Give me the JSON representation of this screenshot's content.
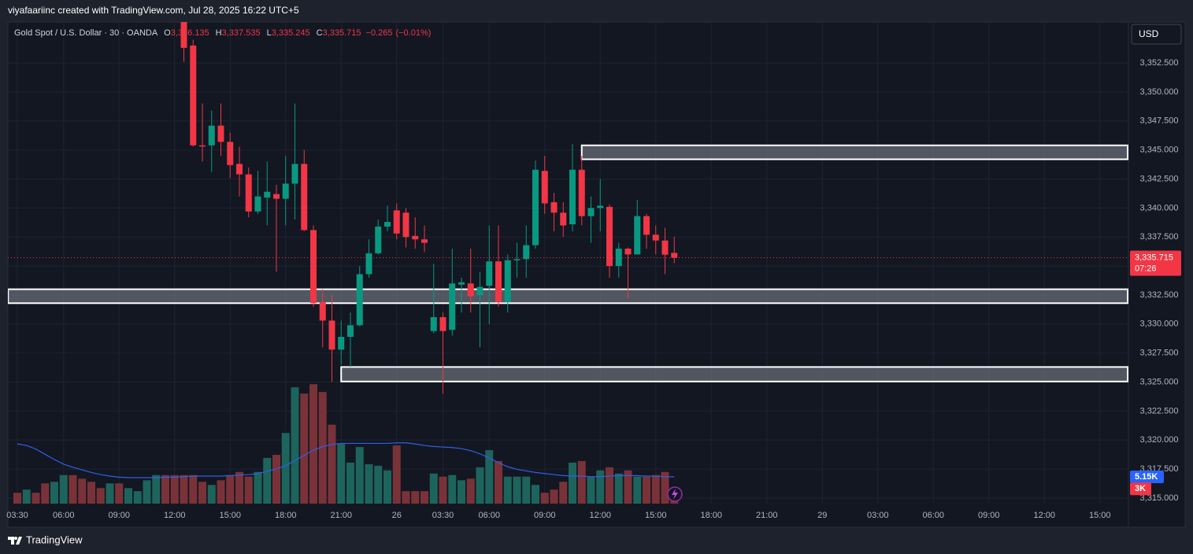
{
  "attribution": "viyafaariinc created with TradingView.com, Jul 28, 2025 16:22 UTC+5",
  "footer": "TradingView",
  "chart_data": {
    "type": "candlestick",
    "header": {
      "symbol": "Gold Spot / U.S. Dollar · 30 · OANDA",
      "ohlc_letters": [
        "O",
        "H",
        "L",
        "C"
      ],
      "ohlc": [
        {
          "value": 3336.135,
          "label": "3,336.135"
        },
        {
          "value": 3337.535,
          "label": "3,337.535"
        },
        {
          "value": 3335.245,
          "label": "3,335.245"
        },
        {
          "value": 3335.715,
          "label": "3,335.715"
        }
      ],
      "change": {
        "value": -0.265,
        "label": "−0.265"
      },
      "change_pct": {
        "value": -0.01,
        "label": "(−0.01%)"
      }
    },
    "currency": "USD",
    "last_price": {
      "value": 3335.715,
      "label": "3,335.715"
    },
    "countdown": "07:26",
    "up_color": "#089981",
    "down_color": "#f23645",
    "volume_up_color": "#1d645c",
    "volume_down_color": "#7a3239",
    "volume_ma_color": "#2f5fe8",
    "grid": true,
    "xlim": [
      0,
      121
    ],
    "ylim": [
      3314.5,
      3356
    ],
    "y2lim": [
      0,
      25
    ],
    "yticks": [
      {
        "value": 3352.5,
        "label": "3,352.500"
      },
      {
        "value": 3350,
        "label": "3,350.000"
      },
      {
        "value": 3347.5,
        "label": "3,347.500"
      },
      {
        "value": 3345,
        "label": "3,345.000"
      },
      {
        "value": 3342.5,
        "label": "3,342.500"
      },
      {
        "value": 3340,
        "label": "3,340.000"
      },
      {
        "value": 3337.5,
        "label": "3,337.500"
      },
      {
        "value": 3335,
        "label": "3,335.000"
      },
      {
        "value": 3332.5,
        "label": "3,332.500"
      },
      {
        "value": 3330,
        "label": "3,330.000"
      },
      {
        "value": 3327.5,
        "label": "3,327.500"
      },
      {
        "value": 3325,
        "label": "3,325.000"
      },
      {
        "value": 3322.5,
        "label": "3,322.500"
      },
      {
        "value": 3320,
        "label": "3,320.000"
      },
      {
        "value": 3317.5,
        "label": "3,317.500"
      },
      {
        "value": 3315,
        "label": "3,315.000"
      }
    ],
    "xticks": [
      {
        "value": 1,
        "label": "03:30"
      },
      {
        "value": 6,
        "label": "06:00"
      },
      {
        "value": 12,
        "label": "09:00"
      },
      {
        "value": 18,
        "label": "12:00"
      },
      {
        "value": 24,
        "label": "15:00"
      },
      {
        "value": 30,
        "label": "18:00"
      },
      {
        "value": 36,
        "label": "21:00"
      },
      {
        "value": 42,
        "label": "26"
      },
      {
        "value": 47,
        "label": "03:30"
      },
      {
        "value": 52,
        "label": "06:00"
      },
      {
        "value": 58,
        "label": "09:00"
      },
      {
        "value": 64,
        "label": "12:00"
      },
      {
        "value": 70,
        "label": "15:00"
      },
      {
        "value": 76,
        "label": "18:00"
      },
      {
        "value": 82,
        "label": "21:00"
      },
      {
        "value": 88,
        "label": "29"
      },
      {
        "value": 94,
        "label": "03:00"
      },
      {
        "value": 100,
        "label": "06:00"
      },
      {
        "value": 106,
        "label": "09:00"
      },
      {
        "value": 112,
        "label": "12:00"
      },
      {
        "value": 118,
        "label": "15:00"
      }
    ],
    "x": [
      1,
      2,
      3,
      4,
      5,
      6,
      7,
      8,
      9,
      10,
      11,
      12,
      13,
      14,
      15,
      16,
      17,
      18,
      19,
      20,
      21,
      22,
      23,
      24,
      25,
      26,
      27,
      28,
      29,
      30,
      31,
      32,
      33,
      34,
      35,
      36,
      37,
      38,
      39,
      40,
      41,
      42,
      43,
      44,
      45,
      46,
      47,
      48,
      49,
      50,
      51,
      52,
      53,
      54,
      55,
      56,
      57,
      58,
      59,
      60,
      61,
      62,
      63,
      64,
      65,
      66,
      67,
      68,
      69,
      70,
      71,
      72
    ],
    "open": [
      null,
      null,
      null,
      null,
      null,
      null,
      null,
      null,
      null,
      null,
      null,
      null,
      null,
      null,
      null,
      null,
      null,
      null,
      3356.5,
      3354,
      3345.4,
      3345.4,
      3347.1,
      3345.7,
      3343.8,
      3342.9,
      3339.7,
      3340.9,
      3341.2,
      3340.8,
      3342.1,
      3343.8,
      3338.1,
      3331.9,
      3330.3,
      3327.8,
      3328.9,
      3329.9,
      3334.3,
      3336.1,
      3338.4,
      3339.8,
      3339.6,
      3337.6,
      3337.3,
      3329.4,
      3330.6,
      3329.5,
      3333.4,
      3333.5,
      3332.5,
      3333.3,
      3335.4,
      3331.9,
      3335.5,
      3335.6,
      3336.8,
      3343.2,
      3340.5,
      3339.6,
      3338.6,
      3343.3,
      3339.3,
      3340,
      3340.1,
      3335,
      3336.5,
      3336,
      3339.3,
      3337.7,
      3337.2,
      3336.135
    ],
    "high": [
      null,
      null,
      null,
      null,
      null,
      null,
      null,
      null,
      null,
      null,
      null,
      null,
      null,
      null,
      null,
      null,
      null,
      null,
      3357,
      3354.5,
      3349,
      3348.4,
      3349,
      3346.5,
      3345.3,
      3343.5,
      3343.2,
      3344,
      3342,
      3344.5,
      3349,
      3345,
      3338.5,
      3333,
      3332.5,
      3330.3,
      3331,
      3335,
      3337.3,
      3339,
      3340.2,
      3340.4,
      3340,
      3339.2,
      3338.5,
      3335.2,
      3331,
      3336.5,
      3334,
      3336.5,
      3334.5,
      3338.5,
      3338.5,
      3336,
      3337,
      3338.5,
      3344.1,
      3344.5,
      3341.3,
      3340.5,
      3345.5,
      3344.5,
      3341,
      3342.5,
      3340.3,
      3337,
      3336.6,
      3340.7,
      3339.5,
      3338.5,
      3338.3,
      3337.535
    ],
    "low": [
      null,
      null,
      null,
      null,
      null,
      null,
      null,
      null,
      null,
      null,
      null,
      null,
      null,
      null,
      null,
      null,
      null,
      null,
      3352.6,
      3345.3,
      3344,
      3343.1,
      3344.5,
      3342.6,
      3341,
      3339.2,
      3339.5,
      3338.5,
      3334.5,
      3338.5,
      3339,
      3338,
      3331.5,
      3328,
      3325,
      3326.5,
      3326.3,
      3329.8,
      3334,
      3336,
      3338,
      3337.3,
      3336.6,
      3336.5,
      3336.2,
      3329.2,
      3324,
      3329,
      3331,
      3331,
      3328,
      3330,
      3331.5,
      3331,
      3334,
      3334,
      3336.5,
      3339.5,
      3338,
      3337.5,
      3338,
      3338.5,
      3337,
      3338,
      3334,
      3334,
      3332.2,
      3336,
      3336.5,
      3336,
      3334.3,
      3335.245
    ],
    "close": [
      null,
      null,
      null,
      null,
      null,
      null,
      null,
      null,
      null,
      null,
      null,
      null,
      null,
      null,
      null,
      null,
      null,
      null,
      3353.8,
      3345.4,
      3345.3,
      3347.1,
      3345.7,
      3343.7,
      3342.9,
      3339.7,
      3341,
      3341.4,
      3340.8,
      3342.1,
      3343.8,
      3338.1,
      3331.8,
      3330.3,
      3327.8,
      3328.9,
      3329.9,
      3334.3,
      3336.1,
      3338.4,
      3338.8,
      3337.8,
      3337.5,
      3337.3,
      3337,
      3330.6,
      3329.4,
      3333.5,
      3333.6,
      3332.4,
      3333.2,
      3335.4,
      3331.9,
      3335.5,
      3335.6,
      3336.8,
      3343.3,
      3340.4,
      3339.6,
      3338.5,
      3343.3,
      3339.3,
      3340,
      3340.2,
      3335,
      3336.5,
      3336,
      3339.3,
      3337.7,
      3337.2,
      3335.98,
      3335.715
    ],
    "volume": [
      2.1,
      2.7,
      2.1,
      3.9,
      4.2,
      5.5,
      5.5,
      4.8,
      4.2,
      3.0,
      3.9,
      3.9,
      3.0,
      2.4,
      4.5,
      5.5,
      5.5,
      5.5,
      5.5,
      5.5,
      4.2,
      3.6,
      4.5,
      5.5,
      6.1,
      5.2,
      6.1,
      8.8,
      9.4,
      13.6,
      22.4,
      21.2,
      23.0,
      21.5,
      15.2,
      11.5,
      7.9,
      10.9,
      7.6,
      7.3,
      6.4,
      11.2,
      2.4,
      2.4,
      2.4,
      5.8,
      5.2,
      5.5,
      4.5,
      4.8,
      7.0,
      10.3,
      8.2,
      5.2,
      5.2,
      5.2,
      3.6,
      2.1,
      2.7,
      4.2,
      7.9,
      8.2,
      5.2,
      6.4,
      7.0,
      5.8,
      6.4,
      5.2,
      5.2,
      5.5,
      6.1,
      3.0
    ],
    "volume_up": [
      false,
      true,
      false,
      false,
      true,
      true,
      false,
      false,
      false,
      false,
      true,
      false,
      true,
      true,
      true,
      true,
      false,
      false,
      false,
      false,
      false,
      true,
      false,
      false,
      false,
      false,
      true,
      true,
      false,
      true,
      true,
      false,
      false,
      false,
      false,
      true,
      true,
      true,
      true,
      true,
      true,
      false,
      false,
      false,
      false,
      true,
      false,
      true,
      true,
      false,
      true,
      true,
      false,
      true,
      true,
      true,
      true,
      false,
      false,
      false,
      true,
      false,
      true,
      true,
      false,
      true,
      false,
      true,
      false,
      false,
      false,
      false
    ],
    "volume_ma": [
      11.5,
      11.2,
      10.5,
      9.5,
      8.5,
      7.6,
      7.0,
      6.5,
      6.0,
      5.6,
      5.3,
      5.1,
      5.0,
      5.0,
      5.0,
      5.0,
      5.1,
      5.1,
      5.2,
      5.3,
      5.3,
      5.3,
      5.3,
      5.4,
      5.5,
      5.6,
      5.8,
      6.2,
      6.7,
      7.3,
      8.3,
      9.3,
      10.3,
      11.0,
      11.4,
      11.6,
      11.6,
      11.6,
      11.6,
      11.6,
      11.6,
      11.7,
      11.7,
      11.5,
      11.2,
      11.0,
      10.9,
      10.8,
      10.6,
      10.2,
      9.6,
      8.8,
      7.9,
      7.1,
      6.6,
      6.3,
      6.0,
      5.8,
      5.6,
      5.4,
      5.3,
      5.3,
      5.2,
      5.2,
      5.3,
      5.4,
      5.4,
      5.4,
      5.3,
      5.3,
      5.2,
      5.15
    ],
    "volume_ma_label": {
      "value": 5.15,
      "label": "5.15K"
    },
    "volume_last_label": {
      "value": 3,
      "label": "3K"
    },
    "zones": [
      {
        "x_start": 62,
        "top": 3345.4,
        "bottom": 3344.2
      },
      {
        "x_start": 0,
        "top": 3333.0,
        "bottom": 3331.8
      },
      {
        "x_start": 36,
        "top": 3326.3,
        "bottom": 3325.05
      }
    ]
  }
}
